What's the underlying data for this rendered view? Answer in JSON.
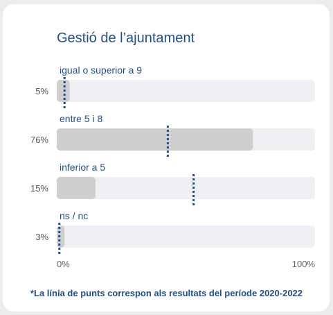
{
  "chart_data": {
    "type": "bar",
    "orientation": "horizontal",
    "title": "Gestió de l’ajuntament",
    "categories": [
      "igual o superior a 9",
      "entre 5 i 8",
      "inferior a 5",
      "ns / nc"
    ],
    "values": [
      5,
      76,
      15,
      3
    ],
    "value_labels": [
      "5%",
      "76%",
      "15%",
      "3%"
    ],
    "reference_values": [
      3,
      43,
      53,
      1
    ],
    "reference_style": "dotted-vertical-line",
    "xlim": [
      0,
      100
    ],
    "tick_labels": [
      "0%",
      "100%"
    ],
    "footnote": "*La línia de punts correspon als resultats del període 2020-2022",
    "colors": {
      "bar": "#cfcfcf",
      "track": "#eef0f4",
      "reference": "#1f4e8c",
      "text": "#1f4e8c"
    }
  }
}
